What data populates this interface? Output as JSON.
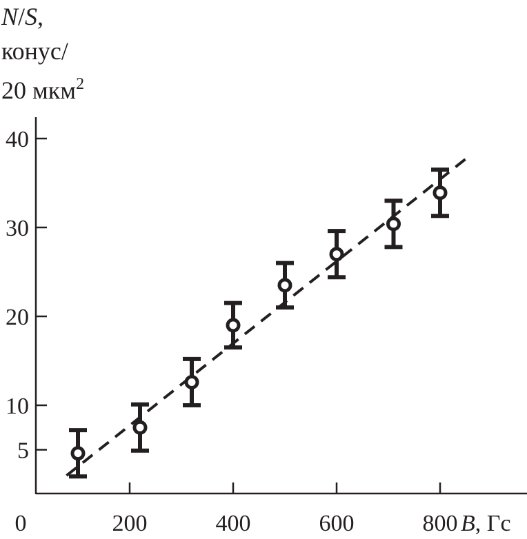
{
  "chart_data": {
    "type": "scatter",
    "title": "",
    "ylabel_lines": [
      "N/S,",
      "конус/",
      "20 мкм"
    ],
    "ylabel_var": "N/S",
    "ylabel_superscript": "2",
    "xlabel_var": "B",
    "xlabel_unit": ", Гс",
    "xlim": [
      0,
      950
    ],
    "ylim": [
      0,
      42
    ],
    "x_ticks": [
      0,
      200,
      400,
      600,
      800
    ],
    "x_tick_labels": [
      "0",
      "200",
      "400",
      "600",
      "800"
    ],
    "y_ticks": [
      5,
      10,
      20,
      30,
      40
    ],
    "y_tick_labels": [
      "5",
      "10",
      "20",
      "30",
      "40"
    ],
    "grid": false,
    "color": "#231f20",
    "points": {
      "x": [
        100,
        220,
        320,
        400,
        500,
        600,
        710,
        800
      ],
      "y": [
        4.6,
        7.5,
        12.6,
        19.0,
        23.5,
        27.0,
        30.4,
        33.9
      ],
      "yerr": [
        2.6,
        2.6,
        2.6,
        2.5,
        2.5,
        2.6,
        2.6,
        2.6
      ]
    },
    "fit_line": {
      "style": "dashed",
      "x": [
        78,
        858
      ],
      "y": [
        2.1,
        38.1
      ]
    }
  }
}
